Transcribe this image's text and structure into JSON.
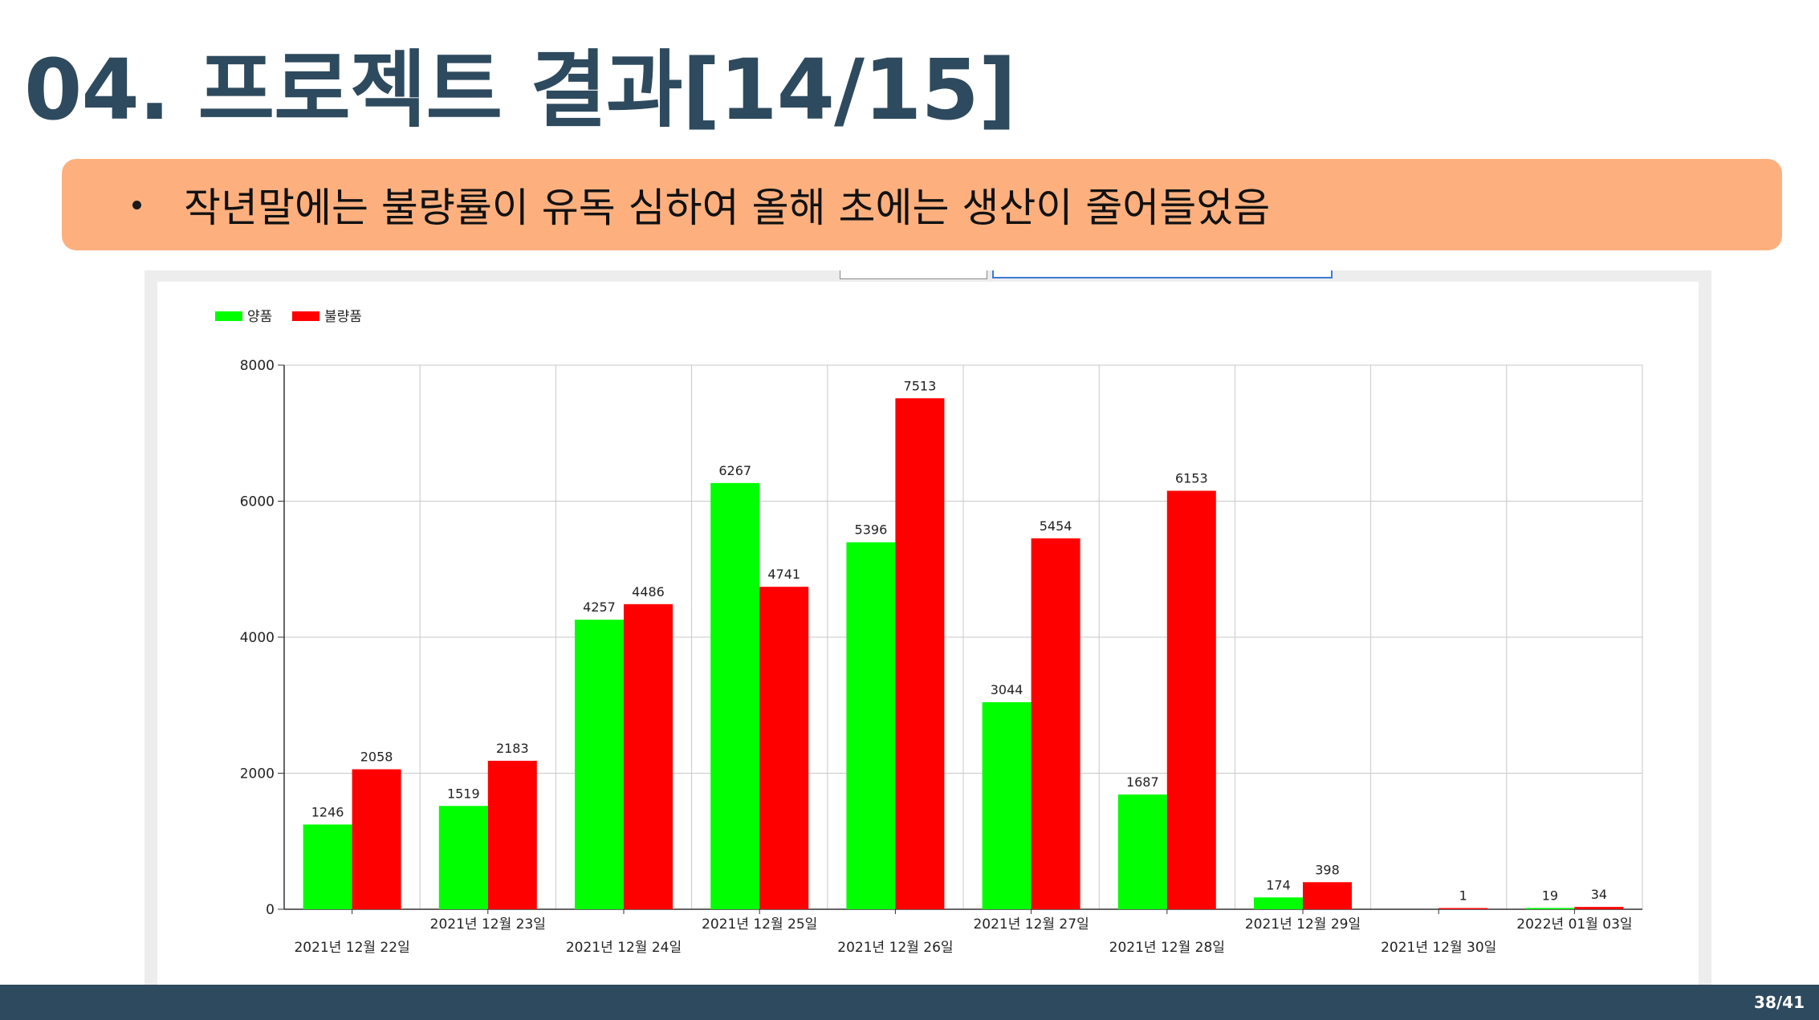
{
  "slide": {
    "title": "04. 프로젝트 결과[14/15]",
    "callout_text": "작년말에는 불량률이 유독 심하여 올해 초에는 생산이 줄어들었음",
    "page_number": "38/41"
  },
  "colors": {
    "title": "#2e4a5e",
    "callout_bg": "#fdb07e",
    "footer_bg": "#2e4a5e",
    "good": "#00ff00",
    "defect": "#ff0000"
  },
  "chart_data": {
    "type": "bar",
    "title": "",
    "xlabel": "",
    "ylabel": "",
    "categories": [
      "2021년 12월 22일",
      "2021년 12월 23일",
      "2021년 12월 24일",
      "2021년 12월 25일",
      "2021년 12월 26일",
      "2021년 12월 27일",
      "2021년 12월 28일",
      "2021년 12월 29일",
      "2021년 12월 30일",
      "2022년 01월 03일"
    ],
    "series": [
      {
        "name": "양품",
        "color": "#00ff00",
        "values": [
          1246,
          1519,
          4257,
          6267,
          5396,
          3044,
          1687,
          174,
          null,
          19
        ]
      },
      {
        "name": "불량품",
        "color": "#ff0000",
        "values": [
          2058,
          2183,
          4486,
          4741,
          7513,
          5454,
          6153,
          398,
          1,
          34
        ]
      }
    ],
    "ylim": [
      0,
      8000
    ],
    "yticks": [
      0,
      2000,
      4000,
      6000,
      8000
    ],
    "grid": true,
    "legend_position": "top-left",
    "data_labels": true
  }
}
